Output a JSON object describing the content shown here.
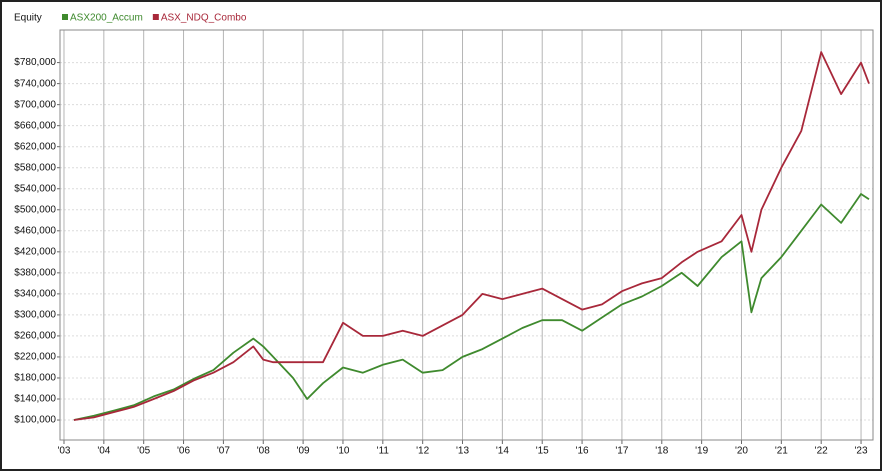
{
  "chart_data": {
    "type": "line",
    "y_label": "Equity",
    "x": [
      2003.25,
      2003.75,
      2004.25,
      2004.75,
      2005.25,
      2005.75,
      2006.25,
      2006.75,
      2007.25,
      2007.75,
      2008.0,
      2008.25,
      2008.75,
      2009.1,
      2009.5,
      2010.0,
      2010.5,
      2011.0,
      2011.5,
      2012.0,
      2012.5,
      2013.0,
      2013.5,
      2014.0,
      2014.5,
      2015.0,
      2015.5,
      2016.0,
      2016.5,
      2017.0,
      2017.5,
      2018.0,
      2018.5,
      2018.9,
      2019.5,
      2020.0,
      2020.25,
      2020.5,
      2021.0,
      2021.5,
      2022.0,
      2022.5,
      2023.0,
      2023.2
    ],
    "series": [
      {
        "name": "ASX200_Accum",
        "color": "#3f8a2e",
        "values": [
          100000,
          108000,
          118000,
          128000,
          145000,
          158000,
          178000,
          195000,
          228000,
          255000,
          240000,
          220000,
          180000,
          140000,
          170000,
          200000,
          190000,
          205000,
          215000,
          190000,
          195000,
          220000,
          235000,
          255000,
          275000,
          290000,
          290000,
          270000,
          295000,
          320000,
          335000,
          355000,
          380000,
          355000,
          410000,
          440000,
          305000,
          370000,
          410000,
          460000,
          510000,
          475000,
          530000,
          520000
        ]
      },
      {
        "name": "ASX_NDQ_Combo",
        "color": "#a8283a",
        "values": [
          100000,
          105000,
          115000,
          125000,
          140000,
          155000,
          175000,
          190000,
          210000,
          240000,
          215000,
          210000,
          210000,
          210000,
          210000,
          285000,
          260000,
          260000,
          270000,
          260000,
          280000,
          300000,
          340000,
          330000,
          340000,
          350000,
          330000,
          310000,
          320000,
          345000,
          360000,
          370000,
          400000,
          420000,
          440000,
          490000,
          420000,
          500000,
          580000,
          650000,
          800000,
          720000,
          780000,
          740000
        ]
      }
    ],
    "xlim": [
      2002.9,
      2023.3
    ],
    "xticks": [
      {
        "value": 2003,
        "label": "'03"
      },
      {
        "value": 2004,
        "label": "'04"
      },
      {
        "value": 2005,
        "label": "'05"
      },
      {
        "value": 2006,
        "label": "'06"
      },
      {
        "value": 2007,
        "label": "'07"
      },
      {
        "value": 2008,
        "label": "'08"
      },
      {
        "value": 2009,
        "label": "'09"
      },
      {
        "value": 2010,
        "label": "'10"
      },
      {
        "value": 2011,
        "label": "'11"
      },
      {
        "value": 2012,
        "label": "'12"
      },
      {
        "value": 2013,
        "label": "'13"
      },
      {
        "value": 2014,
        "label": "'14"
      },
      {
        "value": 2015,
        "label": "'15"
      },
      {
        "value": 2016,
        "label": "'16"
      },
      {
        "value": 2017,
        "label": "'17"
      },
      {
        "value": 2018,
        "label": "'18"
      },
      {
        "value": 2019,
        "label": "'19"
      },
      {
        "value": 2020,
        "label": "'20"
      },
      {
        "value": 2021,
        "label": "'21"
      },
      {
        "value": 2022,
        "label": "'22"
      },
      {
        "value": 2023,
        "label": "'23"
      }
    ],
    "ylim": [
      62000,
      842000
    ],
    "yticks": [
      {
        "value": 100000,
        "label": "$100,000"
      },
      {
        "value": 140000,
        "label": "$140,000"
      },
      {
        "value": 180000,
        "label": "$180,000"
      },
      {
        "value": 220000,
        "label": "$220,000"
      },
      {
        "value": 260000,
        "label": "$260,000"
      },
      {
        "value": 300000,
        "label": "$300,000"
      },
      {
        "value": 340000,
        "label": "$340,000"
      },
      {
        "value": 380000,
        "label": "$380,000"
      },
      {
        "value": 420000,
        "label": "$420,000"
      },
      {
        "value": 460000,
        "label": "$460,000"
      },
      {
        "value": 500000,
        "label": "$500,000"
      },
      {
        "value": 540000,
        "label": "$540,000"
      },
      {
        "value": 580000,
        "label": "$580,000"
      },
      {
        "value": 620000,
        "label": "$620,000"
      },
      {
        "value": 660000,
        "label": "$660,000"
      },
      {
        "value": 700000,
        "label": "$700,000"
      },
      {
        "value": 740000,
        "label": "$740,000"
      },
      {
        "value": 780000,
        "label": "$780,000"
      }
    ],
    "grid": true
  }
}
